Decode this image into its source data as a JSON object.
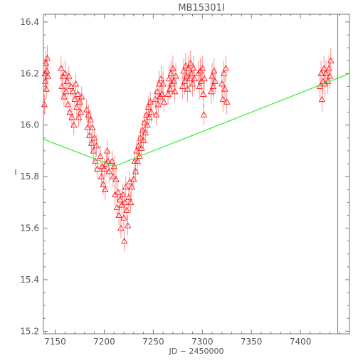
{
  "chart_data": {
    "type": "scatter",
    "title": "MB15301I",
    "xlabel": "JD − 2450000",
    "ylabel": "I",
    "xlim": [
      7138,
      7450
    ],
    "ylim": [
      16.43,
      15.19
    ],
    "y_inverted": true,
    "grid": false,
    "x_ticks": [
      "7150",
      "7200",
      "7250",
      "7300",
      "7350",
      "7400"
    ],
    "x_tick_values": [
      7150,
      7200,
      7250,
      7300,
      7350,
      7400
    ],
    "y_ticks": [
      "15.2",
      "15.4",
      "15.6",
      "15.8",
      "16.0",
      "16.2",
      "16.4"
    ],
    "y_tick_values": [
      15.2,
      15.4,
      15.6,
      15.8,
      16.0,
      16.2,
      16.4
    ],
    "vertical_line_x": 7438,
    "series": [
      {
        "kind": "points",
        "marker": "triangle-open",
        "color": "#ff0000",
        "error_bar_color": "#ff7777",
        "points": [
          [
            7139,
            16.08,
            0.04
          ],
          [
            7139.5,
            16.2,
            0.05
          ],
          [
            7140,
            16.17,
            0.04
          ],
          [
            7140.5,
            16.24,
            0.05
          ],
          [
            7141,
            16.14,
            0.04
          ],
          [
            7141.5,
            16.21,
            0.05
          ],
          [
            7142,
            16.26,
            0.05
          ],
          [
            7142.5,
            16.19,
            0.04
          ],
          [
            7156,
            16.22,
            0.05
          ],
          [
            7157,
            16.15,
            0.04
          ],
          [
            7158,
            16.19,
            0.05
          ],
          [
            7159,
            16.11,
            0.04
          ],
          [
            7160,
            16.2,
            0.05
          ],
          [
            7161,
            16.13,
            0.04
          ],
          [
            7162,
            16.17,
            0.04
          ],
          [
            7163,
            16.08,
            0.04
          ],
          [
            7164,
            16.19,
            0.04
          ],
          [
            7165,
            16.05,
            0.04
          ],
          [
            7166,
            16.15,
            0.04
          ],
          [
            7167,
            16.03,
            0.04
          ],
          [
            7168,
            16.13,
            0.04
          ],
          [
            7169,
            16.0,
            0.04
          ],
          [
            7170,
            16.1,
            0.04
          ],
          [
            7171,
            16.16,
            0.04
          ],
          [
            7172,
            16.07,
            0.04
          ],
          [
            7173,
            16.12,
            0.04
          ],
          [
            7174,
            16.03,
            0.04
          ],
          [
            7175,
            16.09,
            0.04
          ],
          [
            7176,
            16.05,
            0.04
          ],
          [
            7177,
            16.11,
            0.04
          ],
          [
            7182,
            16.06,
            0.04
          ],
          [
            7183,
            15.99,
            0.04
          ],
          [
            7184,
            16.04,
            0.04
          ],
          [
            7185,
            15.96,
            0.04
          ],
          [
            7186,
            16.02,
            0.04
          ],
          [
            7187,
            15.93,
            0.04
          ],
          [
            7188,
            15.99,
            0.04
          ],
          [
            7189,
            15.9,
            0.04
          ],
          [
            7190,
            15.95,
            0.04
          ],
          [
            7191,
            15.86,
            0.04
          ],
          [
            7192,
            15.92,
            0.04
          ],
          [
            7193,
            15.83,
            0.04
          ],
          [
            7196,
            15.88,
            0.04
          ],
          [
            7197,
            15.8,
            0.04
          ],
          [
            7198,
            15.84,
            0.04
          ],
          [
            7199,
            15.77,
            0.04
          ],
          [
            7200,
            15.83,
            0.04
          ],
          [
            7201,
            15.75,
            0.04
          ],
          [
            7202,
            15.85,
            0.04
          ],
          [
            7203,
            15.9,
            0.04
          ],
          [
            7204,
            15.86,
            0.04
          ],
          [
            7205,
            15.82,
            0.04
          ],
          [
            7208,
            15.86,
            0.04
          ],
          [
            7209,
            15.8,
            0.04
          ],
          [
            7210,
            15.84,
            0.04
          ],
          [
            7211,
            15.73,
            0.04
          ],
          [
            7212,
            15.79,
            0.04
          ],
          [
            7213,
            15.68,
            0.04
          ],
          [
            7214,
            15.74,
            0.04
          ],
          [
            7215,
            15.65,
            0.04
          ],
          [
            7216,
            15.71,
            0.04
          ],
          [
            7217,
            15.6,
            0.04
          ],
          [
            7218,
            15.69,
            0.04
          ],
          [
            7219,
            15.73,
            0.04
          ],
          [
            7220,
            15.64,
            0.04
          ],
          [
            7220.5,
            15.55,
            0.04
          ],
          [
            7221,
            15.7,
            0.04
          ],
          [
            7222,
            15.76,
            0.04
          ],
          [
            7223,
            15.67,
            0.04
          ],
          [
            7224,
            15.61,
            0.04
          ],
          [
            7225,
            15.72,
            0.04
          ],
          [
            7226,
            15.78,
            0.04
          ],
          [
            7227,
            15.7,
            0.04
          ],
          [
            7228,
            15.76,
            0.04
          ],
          [
            7230,
            15.79,
            0.04
          ],
          [
            7231,
            15.86,
            0.04
          ],
          [
            7232,
            15.82,
            0.04
          ],
          [
            7233,
            15.9,
            0.04
          ],
          [
            7234,
            15.86,
            0.04
          ],
          [
            7235,
            15.92,
            0.04
          ],
          [
            7236,
            15.88,
            0.04
          ],
          [
            7237,
            15.95,
            0.04
          ],
          [
            7238,
            15.91,
            0.04
          ],
          [
            7239,
            15.98,
            0.04
          ],
          [
            7240,
            15.94,
            0.04
          ],
          [
            7241,
            16.01,
            0.04
          ],
          [
            7242,
            15.97,
            0.04
          ],
          [
            7243,
            16.04,
            0.04
          ],
          [
            7244,
            16.0,
            0.04
          ],
          [
            7245,
            16.07,
            0.04
          ],
          [
            7246,
            16.03,
            0.04
          ],
          [
            7247,
            16.09,
            0.04
          ],
          [
            7248,
            16.05,
            0.04
          ],
          [
            7252,
            16.1,
            0.04
          ],
          [
            7253,
            16.04,
            0.04
          ],
          [
            7254,
            16.13,
            0.04
          ],
          [
            7255,
            16.08,
            0.04
          ],
          [
            7256,
            16.16,
            0.05
          ],
          [
            7257,
            16.11,
            0.04
          ],
          [
            7258,
            16.18,
            0.05
          ],
          [
            7259,
            16.12,
            0.04
          ],
          [
            7260,
            16.16,
            0.05
          ],
          [
            7261,
            16.09,
            0.04
          ],
          [
            7265,
            16.12,
            0.04
          ],
          [
            7266,
            16.18,
            0.05
          ],
          [
            7267,
            16.14,
            0.04
          ],
          [
            7268,
            16.2,
            0.05
          ],
          [
            7269,
            16.16,
            0.05
          ],
          [
            7270,
            16.22,
            0.05
          ],
          [
            7271,
            16.17,
            0.05
          ],
          [
            7272,
            16.13,
            0.04
          ],
          [
            7273,
            16.19,
            0.05
          ],
          [
            7280,
            16.15,
            0.05
          ],
          [
            7281,
            16.21,
            0.05
          ],
          [
            7282,
            16.17,
            0.05
          ],
          [
            7283,
            16.23,
            0.05
          ],
          [
            7284,
            16.19,
            0.05
          ],
          [
            7285,
            16.14,
            0.05
          ],
          [
            7286,
            16.22,
            0.05
          ],
          [
            7287,
            16.18,
            0.05
          ],
          [
            7288,
            16.24,
            0.05
          ],
          [
            7289,
            16.2,
            0.05
          ],
          [
            7290,
            16.16,
            0.05
          ],
          [
            7291,
            16.22,
            0.05
          ],
          [
            7292,
            16.18,
            0.05
          ],
          [
            7296,
            16.2,
            0.05
          ],
          [
            7297,
            16.15,
            0.05
          ],
          [
            7298,
            16.21,
            0.05
          ],
          [
            7299,
            16.17,
            0.05
          ],
          [
            7300,
            16.22,
            0.05
          ],
          [
            7301,
            16.12,
            0.05
          ],
          [
            7301.5,
            16.04,
            0.04
          ],
          [
            7302,
            16.18,
            0.05
          ],
          [
            7309,
            16.13,
            0.05
          ],
          [
            7310,
            16.19,
            0.05
          ],
          [
            7311,
            16.15,
            0.05
          ],
          [
            7312,
            16.21,
            0.05
          ],
          [
            7313,
            16.17,
            0.05
          ],
          [
            7320,
            16.16,
            0.05
          ],
          [
            7321,
            16.1,
            0.05
          ],
          [
            7322,
            16.2,
            0.05
          ],
          [
            7323,
            16.14,
            0.05
          ],
          [
            7324,
            16.22,
            0.05
          ],
          [
            7325,
            16.09,
            0.05
          ],
          [
            7420,
            16.15,
            0.05
          ],
          [
            7421,
            16.2,
            0.05
          ],
          [
            7422,
            16.1,
            0.05
          ],
          [
            7423,
            16.17,
            0.05
          ],
          [
            7424,
            16.22,
            0.05
          ],
          [
            7425,
            16.16,
            0.05
          ],
          [
            7426,
            16.2,
            0.05
          ],
          [
            7428,
            16.17,
            0.05
          ],
          [
            7429,
            16.22,
            0.05
          ],
          [
            7430,
            16.19,
            0.05
          ],
          [
            7431,
            16.25,
            0.05
          ]
        ]
      },
      {
        "kind": "line",
        "color": "#33ee33",
        "x": [
          7138,
          7210,
          7450
        ],
        "y": [
          15.945,
          15.84,
          16.2
        ]
      }
    ]
  }
}
